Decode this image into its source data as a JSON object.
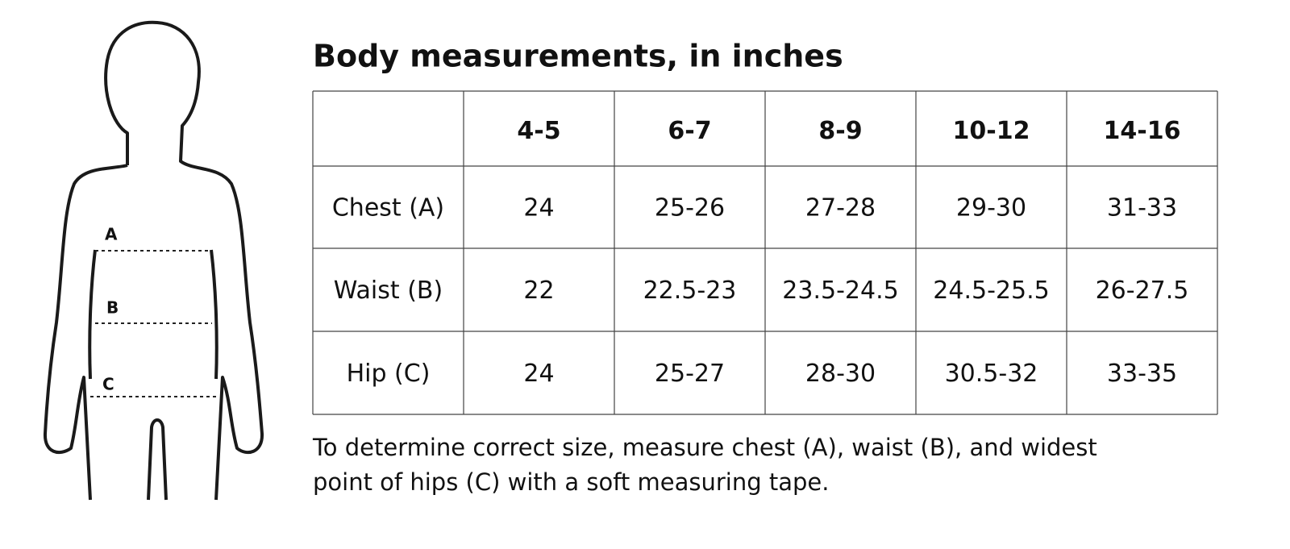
{
  "figure": {
    "labels": [
      "A",
      "B",
      "C"
    ]
  },
  "header": {
    "title": "Body measurements, in inches"
  },
  "table": {
    "columns": [
      "4-5",
      "6-7",
      "8-9",
      "10-12",
      "14-16"
    ],
    "rows": [
      [
        "Chest (A)",
        "24",
        "25-26",
        "27-28",
        "29-30",
        "31-33"
      ],
      [
        "Waist (B)",
        "22",
        "22.5-23",
        "23.5-24.5",
        "24.5-25.5",
        "26-27.5"
      ],
      [
        "Hip (C)",
        "24",
        "25-27",
        "28-30",
        "30.5-32",
        "33-35"
      ]
    ]
  },
  "note": {
    "lines": [
      "To determine correct size, measure chest (A), waist (B), and widest",
      "point of hips (C) with a soft measuring tape."
    ]
  }
}
